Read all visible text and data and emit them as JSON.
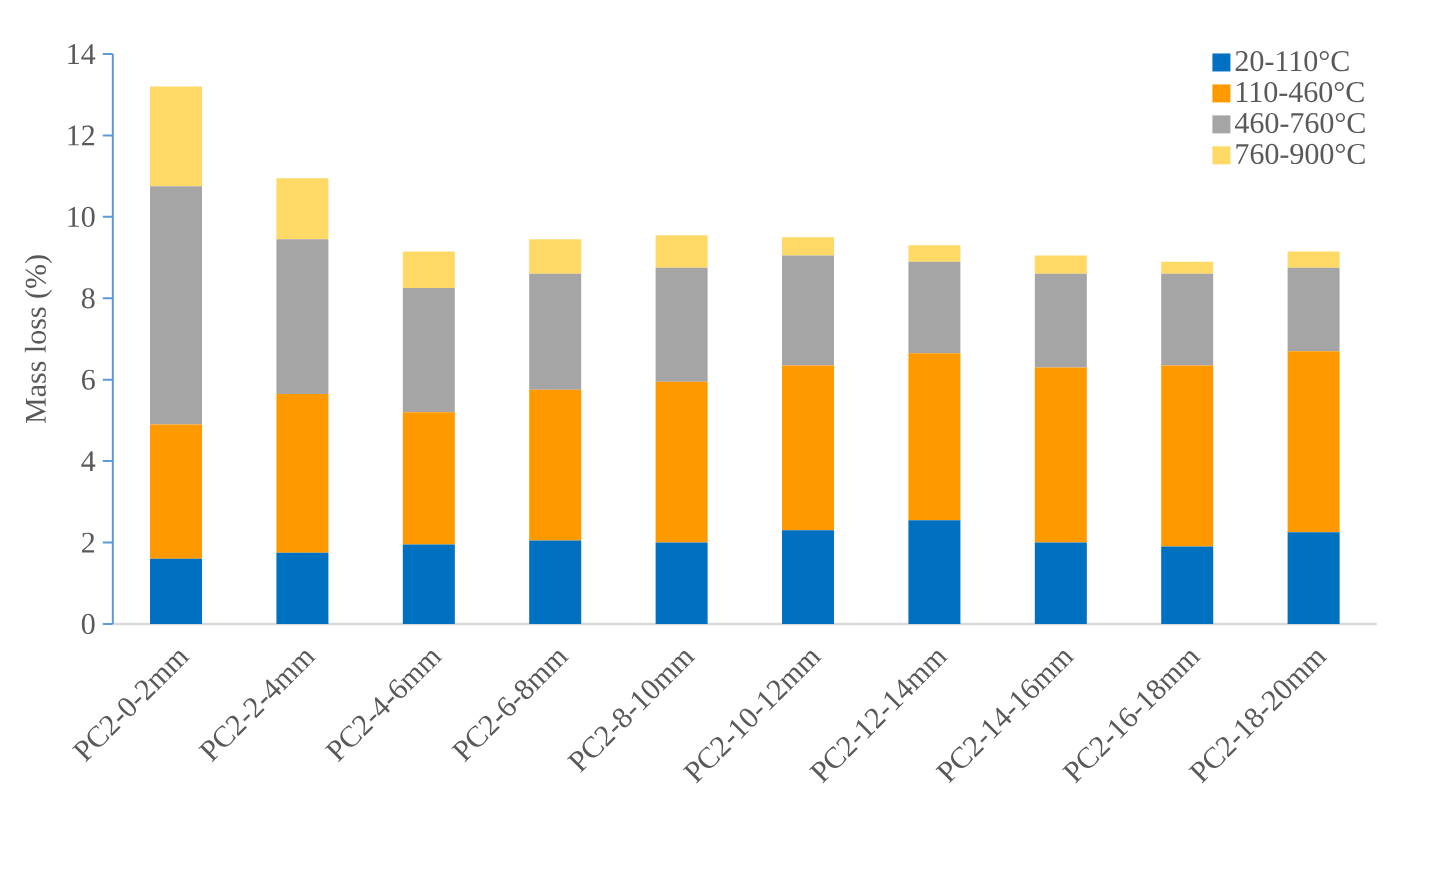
{
  "chart_data": {
    "type": "bar",
    "stacked": true,
    "ylabel": "Mass loss (%)",
    "categories": [
      "PC2-0-2mm",
      "PC2-2-4mm",
      "PC2-4-6mm",
      "PC2-6-8mm",
      "PC2-8-10mm",
      "PC2-10-12mm",
      "PC2-12-14mm",
      "PC2-14-16mm",
      "PC2-16-18mm",
      "PC2-18-20mm"
    ],
    "series": [
      {
        "name": "20-110°C",
        "color": "#0070c0",
        "values": [
          1.6,
          1.75,
          1.95,
          2.05,
          2.0,
          2.3,
          2.55,
          2.0,
          1.9,
          2.25
        ]
      },
      {
        "name": "110-460°C",
        "color": "#ff9900",
        "values": [
          3.3,
          3.9,
          3.25,
          3.7,
          3.95,
          4.05,
          4.1,
          4.3,
          4.45,
          4.45
        ]
      },
      {
        "name": "460-760°C",
        "color": "#a5a5a5",
        "values": [
          5.85,
          3.8,
          3.05,
          2.85,
          2.8,
          2.7,
          2.25,
          2.3,
          2.25,
          2.05
        ]
      },
      {
        "name": "760-900°C",
        "color": "#ffd966",
        "values": [
          2.45,
          1.5,
          0.9,
          0.85,
          0.8,
          0.45,
          0.4,
          0.45,
          0.3,
          0.4
        ]
      }
    ],
    "ylim": [
      0,
      14
    ],
    "yticks": [
      0,
      2,
      4,
      6,
      8,
      10,
      12,
      14
    ],
    "legend": "top right",
    "grid": false
  }
}
